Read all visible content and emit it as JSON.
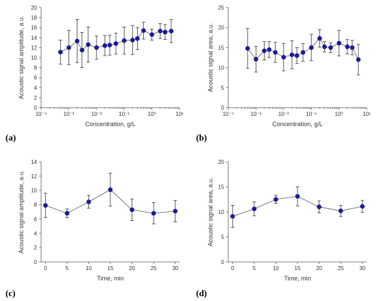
{
  "colors": {
    "marker": "#1a1aa6",
    "line": "#555555",
    "errorbar": "#333333",
    "axis": "#555555",
    "text": "#333333"
  },
  "chart_data": [
    {
      "panel": "(a)",
      "type": "scatter",
      "xscale": "log",
      "xlim": [
        0.0001,
        10
      ],
      "ylim": [
        0,
        20
      ],
      "yticks": [
        0,
        2,
        4,
        6,
        8,
        10,
        12,
        14,
        16,
        18,
        20
      ],
      "xtick_labels": [
        "10⁻⁴",
        "10⁻³",
        "10⁻²",
        "10⁻¹",
        "10⁰",
        "10¹"
      ],
      "xlabel": "Concentration, g/L",
      "ylabel": "Acoustic signal amplitude,  a.u.",
      "grid": false,
      "series": [
        {
          "x": [
            0.0005,
            0.001,
            0.002,
            0.003,
            0.005,
            0.01,
            0.02,
            0.03,
            0.05,
            0.1,
            0.2,
            0.3,
            0.5,
            1,
            2,
            3,
            5
          ],
          "y": [
            11.1,
            12.0,
            13.3,
            11.5,
            12.6,
            12.0,
            12.4,
            12.5,
            12.8,
            13.4,
            13.5,
            13.8,
            15.4,
            14.6,
            15.3,
            15.1,
            15.3
          ],
          "err": [
            2.4,
            3.4,
            4.3,
            3.5,
            3.5,
            2.3,
            2.0,
            2.0,
            2.1,
            2.7,
            2.9,
            2.2,
            1.7,
            1.1,
            1.5,
            1.5,
            2.3
          ]
        }
      ]
    },
    {
      "panel": "(b)",
      "type": "scatter",
      "xscale": "log",
      "xlim": [
        0.0001,
        10
      ],
      "ylim": [
        0,
        25
      ],
      "yticks": [
        0,
        5,
        10,
        15,
        20,
        25
      ],
      "xtick_labels": [
        "10⁻⁴",
        "10⁻³",
        "10⁻²",
        "10⁻¹",
        "10⁰",
        "10¹"
      ],
      "xlabel": "Concentration, g/L",
      "ylabel": "Acoustic signal area,  a.u.",
      "grid": false,
      "series": [
        {
          "x": [
            0.0005,
            0.001,
            0.002,
            0.003,
            0.005,
            0.01,
            0.02,
            0.03,
            0.05,
            0.1,
            0.2,
            0.3,
            0.5,
            1,
            2,
            3,
            5
          ],
          "y": [
            14.8,
            12.1,
            14.2,
            14.5,
            13.8,
            12.6,
            13.2,
            13.0,
            13.8,
            15.0,
            17.3,
            15.2,
            15.0,
            16.1,
            15.2,
            15.0,
            12.0
          ],
          "err": [
            5.0,
            3.2,
            2.3,
            2.0,
            2.5,
            3.4,
            3.5,
            2.0,
            2.2,
            3.3,
            2.2,
            1.3,
            1.2,
            3.2,
            1.8,
            1.8,
            3.8
          ]
        }
      ]
    },
    {
      "panel": "(c)",
      "type": "scatter",
      "xscale": "linear",
      "xlim": [
        -1,
        31
      ],
      "ylim": [
        0,
        14
      ],
      "xticks": [
        0,
        5,
        10,
        15,
        20,
        25,
        30
      ],
      "yticks": [
        0,
        2,
        4,
        6,
        8,
        10,
        12,
        14
      ],
      "xlabel": "Time, min",
      "ylabel": "Acoustic signal amplitude, a.u.",
      "grid": false,
      "series": [
        {
          "x": [
            0,
            5,
            10,
            15,
            20,
            25,
            30
          ],
          "y": [
            7.9,
            6.8,
            8.4,
            10.1,
            7.3,
            6.8,
            7.1
          ],
          "err": [
            1.7,
            0.6,
            0.9,
            2.3,
            1.5,
            1.5,
            1.5
          ]
        }
      ]
    },
    {
      "panel": "(d)",
      "type": "scatter",
      "xscale": "linear",
      "xlim": [
        -1,
        31
      ],
      "ylim": [
        0,
        20
      ],
      "xticks": [
        0,
        5,
        10,
        15,
        20,
        25,
        30
      ],
      "yticks": [
        0,
        5,
        10,
        15,
        20
      ],
      "xlabel": "Time, min",
      "ylabel": "Acoustic signal area,  a.u.",
      "grid": false,
      "series": [
        {
          "x": [
            0,
            5,
            10,
            15,
            20,
            25,
            30
          ],
          "y": [
            9.1,
            10.6,
            12.5,
            13.1,
            11.0,
            10.2,
            11.1
          ],
          "err": [
            2.2,
            1.4,
            0.8,
            1.9,
            1.2,
            1.1,
            1.2
          ]
        }
      ]
    }
  ]
}
